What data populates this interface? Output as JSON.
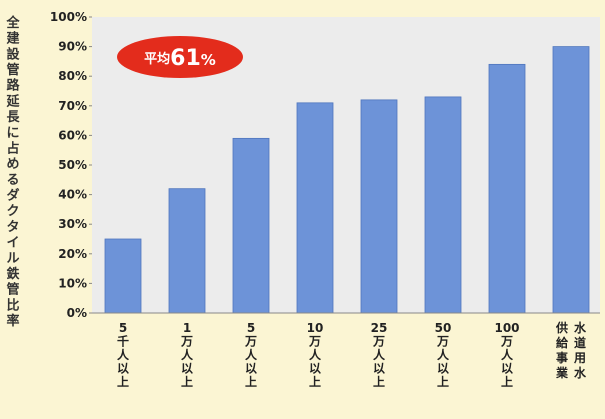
{
  "chart_data": {
    "type": "bar",
    "ylabel": "全建設管路延長に占めるダクタイル鉄管比率",
    "ylim": [
      0,
      100
    ],
    "y_ticks": [
      "0%",
      "10%",
      "20%",
      "30%",
      "40%",
      "50%",
      "60%",
      "70%",
      "80%",
      "90%",
      "100%"
    ],
    "categories": [
      {
        "lines": [
          "5",
          "千",
          "人",
          "以",
          "上"
        ]
      },
      {
        "lines": [
          "1",
          "万",
          "人",
          "以",
          "上"
        ]
      },
      {
        "lines": [
          "5",
          "万",
          "人",
          "以",
          "上"
        ]
      },
      {
        "lines": [
          "10",
          "万",
          "人",
          "以",
          "上"
        ]
      },
      {
        "lines": [
          "25",
          "万",
          "人",
          "以",
          "上"
        ]
      },
      {
        "lines": [
          "50",
          "万",
          "人",
          "以",
          "上"
        ]
      },
      {
        "lines": [
          "100",
          "万",
          "人",
          "以",
          "上"
        ]
      },
      {
        "columns": [
          [
            "水",
            "道",
            "用",
            "水"
          ],
          [
            "供",
            "給",
            "事",
            "業"
          ]
        ]
      }
    ],
    "values": [
      25,
      42,
      59,
      71,
      72,
      73,
      84,
      90
    ],
    "annotation": {
      "prefix": "平均",
      "value": "61",
      "unit": "%"
    },
    "grid": false,
    "colors": {
      "bar": "#6d93d8",
      "bar_edge": "#4f76bd",
      "badge": "#e32c1c",
      "plot_bg": "#ececec"
    }
  }
}
